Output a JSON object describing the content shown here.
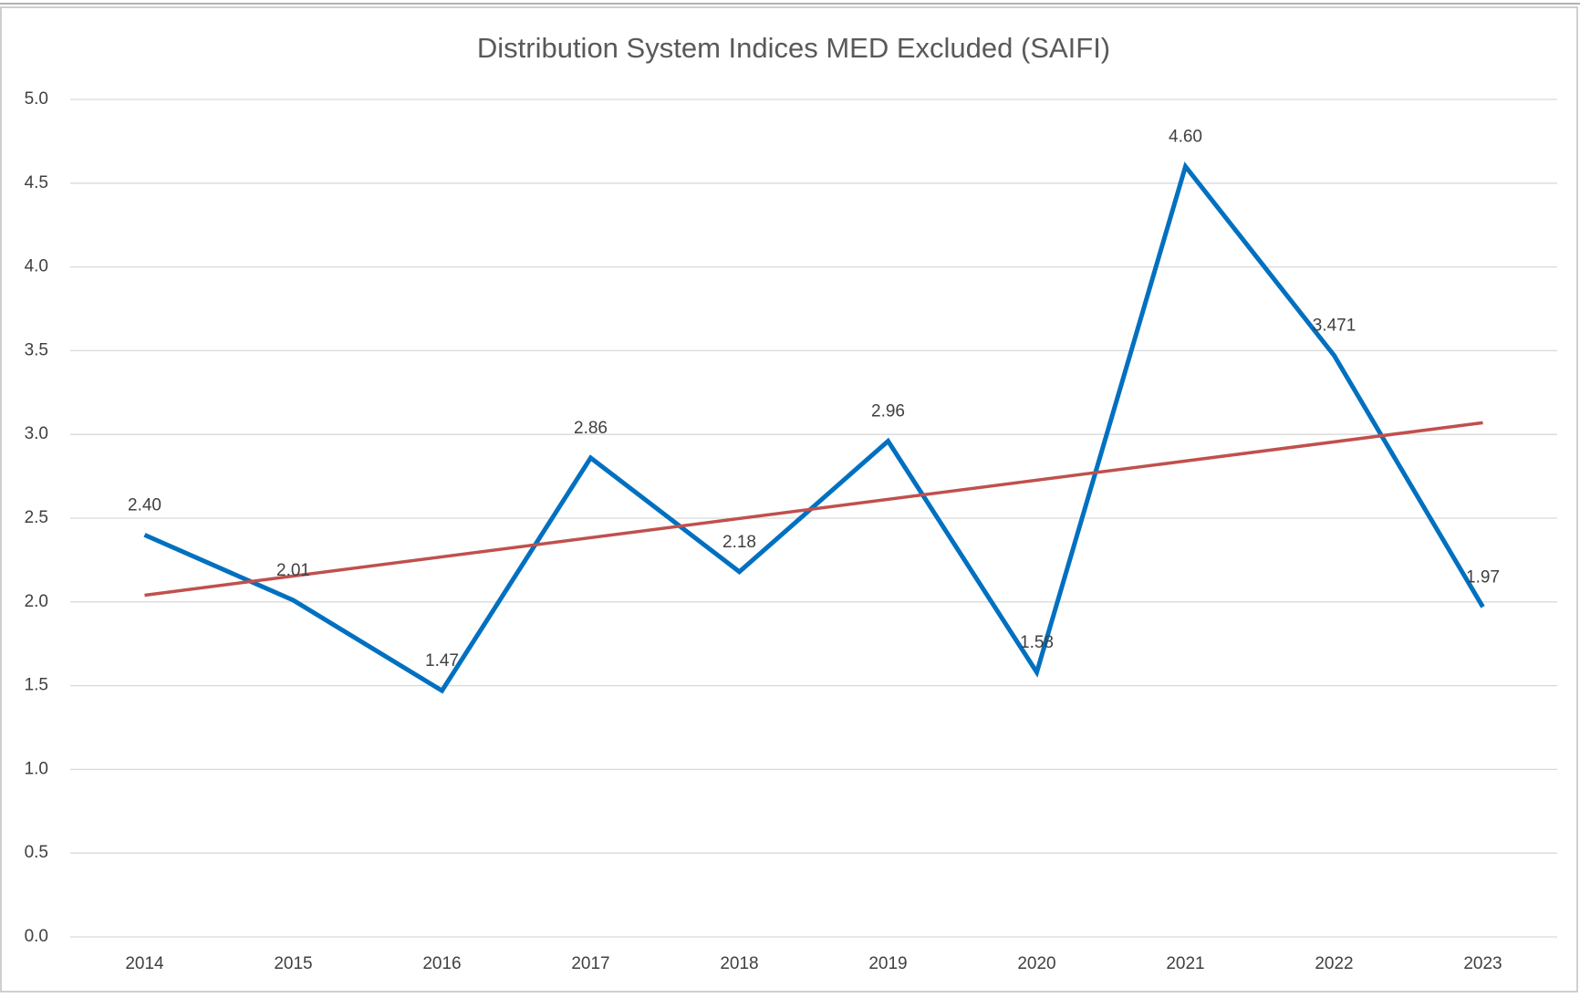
{
  "chart_data": {
    "type": "line",
    "title": "Distribution System Indices MED Excluded (SAIFI)",
    "categories": [
      "2014",
      "2015",
      "2016",
      "2017",
      "2018",
      "2019",
      "2020",
      "2021",
      "2022",
      "2023"
    ],
    "series": [
      {
        "color": "#0070c0",
        "values": [
          2.4,
          2.01,
          1.47,
          2.86,
          2.18,
          2.96,
          1.58,
          4.6,
          3.471,
          1.97
        ],
        "value_labels": [
          "2.40",
          "2.01",
          "1.47",
          "2.86",
          "2.18",
          "2.96",
          "1.58",
          "4.60",
          "3.471",
          "1.97"
        ]
      }
    ],
    "trendline": {
      "type": "linear",
      "color": "#c0504d",
      "start": 2.04,
      "end": 3.07
    },
    "ylim": [
      0,
      5
    ],
    "yticks": [
      {
        "value": 0,
        "label": "0.0"
      },
      {
        "value": 0.5,
        "label": "0.5"
      },
      {
        "value": 1,
        "label": "1.0"
      },
      {
        "value": 1.5,
        "label": "1.5"
      },
      {
        "value": 2,
        "label": "2.0"
      },
      {
        "value": 2.5,
        "label": "2.5"
      },
      {
        "value": 3,
        "label": "3.0"
      },
      {
        "value": 3.5,
        "label": "3.5"
      },
      {
        "value": 4,
        "label": "4.0"
      },
      {
        "value": 4.5,
        "label": "4.5"
      },
      {
        "value": 5,
        "label": "5.0"
      }
    ],
    "grid": true
  }
}
